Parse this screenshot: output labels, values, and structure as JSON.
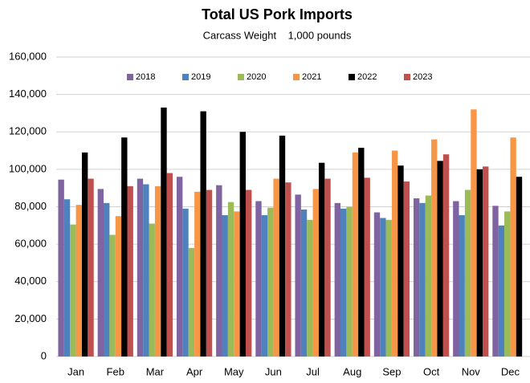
{
  "chart_data": {
    "type": "bar",
    "title": "Total US Pork Imports",
    "subtitle": "Carcass Weight    1,000 pounds",
    "categories": [
      "Jan",
      "Feb",
      "Mar",
      "Apr",
      "May",
      "Jun",
      "Jul",
      "Aug",
      "Sep",
      "Oct",
      "Nov",
      "Dec"
    ],
    "series": [
      {
        "name": "2018",
        "color": "#8064a2",
        "values": [
          94500,
          89500,
          95000,
          96000,
          91500,
          83000,
          86500,
          82000,
          77000,
          84500,
          83000,
          80500
        ]
      },
      {
        "name": "2019",
        "color": "#4f81bd",
        "values": [
          84000,
          82000,
          92000,
          79000,
          75500,
          75500,
          78500,
          79000,
          74000,
          82000,
          75500,
          70000
        ]
      },
      {
        "name": "2020",
        "color": "#9bbb59",
        "values": [
          70500,
          65000,
          71000,
          58000,
          82500,
          79500,
          73000,
          80000,
          73000,
          86000,
          89000,
          77500
        ]
      },
      {
        "name": "2021",
        "color": "#f79646",
        "values": [
          81000,
          75000,
          91000,
          88000,
          77500,
          95000,
          89500,
          109000,
          110000,
          116000,
          132000,
          117000
        ]
      },
      {
        "name": "2022",
        "color": "#000000",
        "values": [
          109000,
          117000,
          133000,
          131000,
          120000,
          118000,
          103500,
          111500,
          102000,
          104500,
          100000,
          96000
        ]
      },
      {
        "name": "2023",
        "color": "#c0504d",
        "values": [
          95000,
          91000,
          98000,
          89000,
          89000,
          93000,
          95000,
          95500,
          93500,
          108000,
          101500,
          null
        ]
      }
    ],
    "ylim": [
      0,
      160000
    ],
    "yticks": [
      0,
      {
        "value": 20000,
        "label": "20,000"
      },
      {
        "value": 40000,
        "label": "40,000"
      },
      {
        "value": 60000,
        "label": "60,000"
      },
      {
        "value": 80000,
        "label": "80,000"
      },
      {
        "value": 100000,
        "label": "100,000"
      },
      {
        "value": 120000,
        "label": "120,000"
      },
      {
        "value": 140000,
        "label": "140,000"
      },
      {
        "value": 160000,
        "label": "160,000"
      }
    ],
    "grid": true,
    "legend": "top"
  }
}
